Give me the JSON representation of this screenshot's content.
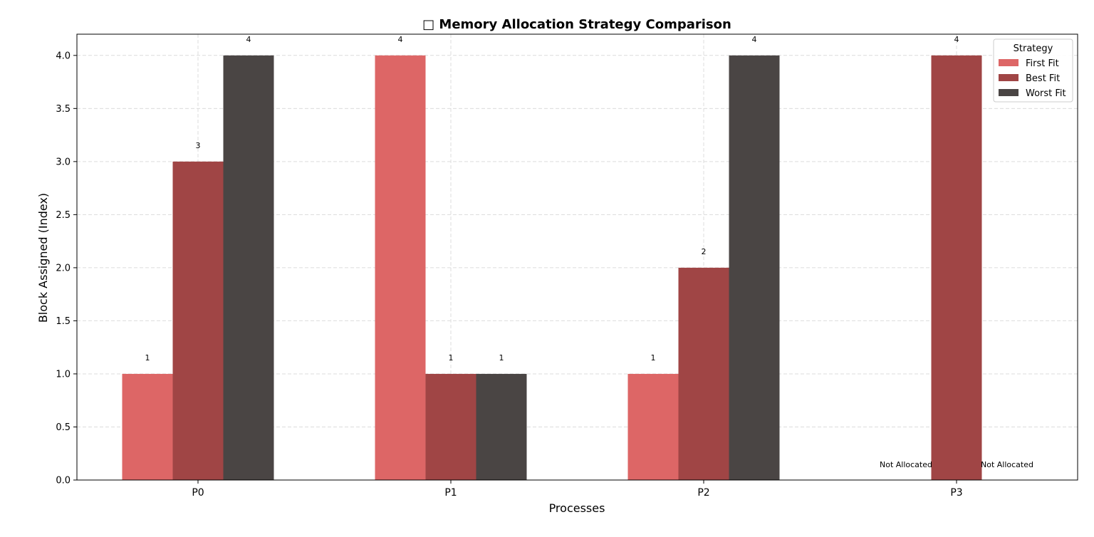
{
  "chart_data": {
    "type": "bar",
    "title": "□ Memory Allocation Strategy Comparison",
    "xlabel": "Processes",
    "ylabel": "Block Assigned (Index)",
    "categories": [
      "P0",
      "P1",
      "P2",
      "P3"
    ],
    "ylim": [
      0,
      4.2
    ],
    "yticks": [
      0.0,
      0.5,
      1.0,
      1.5,
      2.0,
      2.5,
      3.0,
      3.5,
      4.0
    ],
    "ytick_labels": [
      "0.0",
      "0.5",
      "1.0",
      "1.5",
      "2.0",
      "2.5",
      "3.0",
      "3.5",
      "4.0"
    ],
    "grid": true,
    "legend": {
      "title": "Strategy",
      "placement": "top-right"
    },
    "series": [
      {
        "name": "First Fit",
        "color": "#dd6666",
        "values": [
          1,
          4,
          1,
          null
        ],
        "labels": [
          "1",
          "4",
          "1",
          "Not Allocated"
        ]
      },
      {
        "name": "Best Fit",
        "color": "#a04545",
        "values": [
          3,
          1,
          2,
          4
        ],
        "labels": [
          "3",
          "1",
          "2",
          "4"
        ]
      },
      {
        "name": "Worst Fit",
        "color": "#4a4544",
        "values": [
          4,
          1,
          4,
          null
        ],
        "labels": [
          "4",
          "1",
          "4",
          "Not Allocated"
        ]
      }
    ]
  }
}
